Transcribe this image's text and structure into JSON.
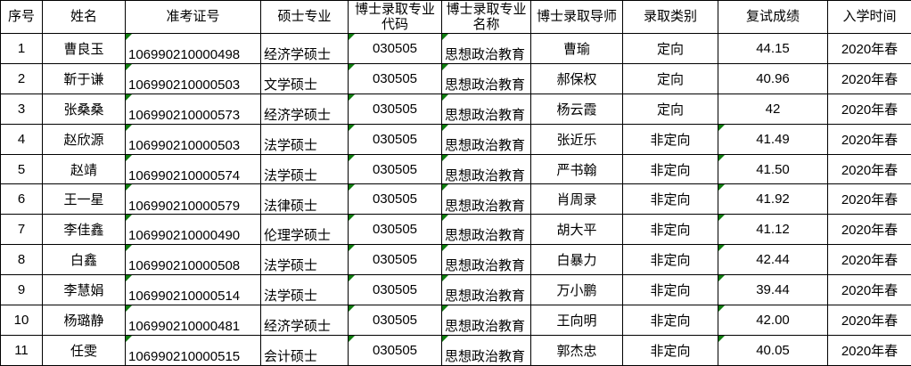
{
  "colors": {
    "grid": "#000000",
    "background": "#ffffff",
    "text": "#000000",
    "flag_green": "#107c10"
  },
  "table": {
    "columns": [
      {
        "id": "seq",
        "label": "序号",
        "width": 47,
        "align": "center"
      },
      {
        "id": "name",
        "label": "姓名",
        "width": 93,
        "align": "center"
      },
      {
        "id": "ticket",
        "label": "准考证号",
        "width": 152,
        "align": "left"
      },
      {
        "id": "master_major",
        "label": "硕士专业",
        "width": 98,
        "align": "left"
      },
      {
        "id": "phd_code",
        "label": "博士录取专业\n代码",
        "width": 105,
        "align": "center"
      },
      {
        "id": "phd_major",
        "label": "博士录取专业\n名称",
        "width": 100,
        "align": "left"
      },
      {
        "id": "supervisor",
        "label": "博士录取导师",
        "width": 103,
        "align": "center"
      },
      {
        "id": "category",
        "label": "录取类别",
        "width": 107,
        "align": "center"
      },
      {
        "id": "score",
        "label": "复试成绩",
        "width": 123,
        "align": "center"
      },
      {
        "id": "enroll",
        "label": "入学时间",
        "width": 94,
        "align": "center"
      }
    ],
    "flag_columns": [
      "ticket",
      "phd_code",
      "phd_major"
    ],
    "rows": [
      {
        "seq": "1",
        "name": "曹良玉",
        "ticket": "106990210000498",
        "master_major": "经济学硕士",
        "phd_code": "030505",
        "phd_major": "思想政治教育",
        "supervisor": "曹瑜",
        "category": "定向",
        "score": "44.15",
        "enroll": "2020年春",
        "score_flag": false
      },
      {
        "seq": "2",
        "name": "靳于谦",
        "ticket": "106990210000503",
        "master_major": "文学硕士",
        "phd_code": "030505",
        "phd_major": "思想政治教育",
        "supervisor": "郝保权",
        "category": "定向",
        "score": "40.96",
        "enroll": "2020年春",
        "score_flag": false
      },
      {
        "seq": "3",
        "name": "张桑桑",
        "ticket": "106990210000573",
        "master_major": "经济学硕士",
        "phd_code": "030505",
        "phd_major": "思想政治教育",
        "supervisor": "杨云霞",
        "category": "定向",
        "score": "42",
        "enroll": "2020年春",
        "score_flag": false
      },
      {
        "seq": "4",
        "name": "赵欣源",
        "ticket": "106990210000503",
        "master_major": "法学硕士",
        "phd_code": "030505",
        "phd_major": "思想政治教育",
        "supervisor": "张近乐",
        "category": "非定向",
        "score": "41.49",
        "enroll": "2020年春",
        "score_flag": true
      },
      {
        "seq": "5",
        "name": "赵靖",
        "ticket": "106990210000574",
        "master_major": "法学硕士",
        "phd_code": "030505",
        "phd_major": "思想政治教育",
        "supervisor": "严书翰",
        "category": "非定向",
        "score": "41.50",
        "enroll": "2020年春",
        "score_flag": true
      },
      {
        "seq": "6",
        "name": "王一星",
        "ticket": "106990210000579",
        "master_major": "法律硕士",
        "phd_code": "030505",
        "phd_major": "思想政治教育",
        "supervisor": "肖周录",
        "category": "非定向",
        "score": "41.92",
        "enroll": "2020年春",
        "score_flag": true
      },
      {
        "seq": "7",
        "name": "李佳鑫",
        "ticket": "106990210000490",
        "master_major": "伦理学硕士",
        "phd_code": "030505",
        "phd_major": "思想政治教育",
        "supervisor": "胡大平",
        "category": "非定向",
        "score": "41.12",
        "enroll": "2020年春",
        "score_flag": true
      },
      {
        "seq": "8",
        "name": "白鑫",
        "ticket": "106990210000508",
        "master_major": "法学硕士",
        "phd_code": "030505",
        "phd_major": "思想政治教育",
        "supervisor": "白暴力",
        "category": "非定向",
        "score": "42.44",
        "enroll": "2020年春",
        "score_flag": true
      },
      {
        "seq": "9",
        "name": "李慧娟",
        "ticket": "106990210000514",
        "master_major": "法学硕士",
        "phd_code": "030505",
        "phd_major": "思想政治教育",
        "supervisor": "万小鹏",
        "category": "非定向",
        "score": "39.44",
        "enroll": "2020年春",
        "score_flag": true
      },
      {
        "seq": "10",
        "name": "杨璐静",
        "ticket": "106990210000481",
        "master_major": "经济学硕士",
        "phd_code": "030505",
        "phd_major": "思想政治教育",
        "supervisor": "王向明",
        "category": "非定向",
        "score": "42.00",
        "enroll": "2020年春",
        "score_flag": true
      },
      {
        "seq": "11",
        "name": "任雯",
        "ticket": "106990210000515",
        "master_major": "会计硕士",
        "phd_code": "030505",
        "phd_major": "思想政治教育",
        "supervisor": "郭杰忠",
        "category": "非定向",
        "score": "40.05",
        "enroll": "2020年春",
        "score_flag": true
      }
    ]
  }
}
